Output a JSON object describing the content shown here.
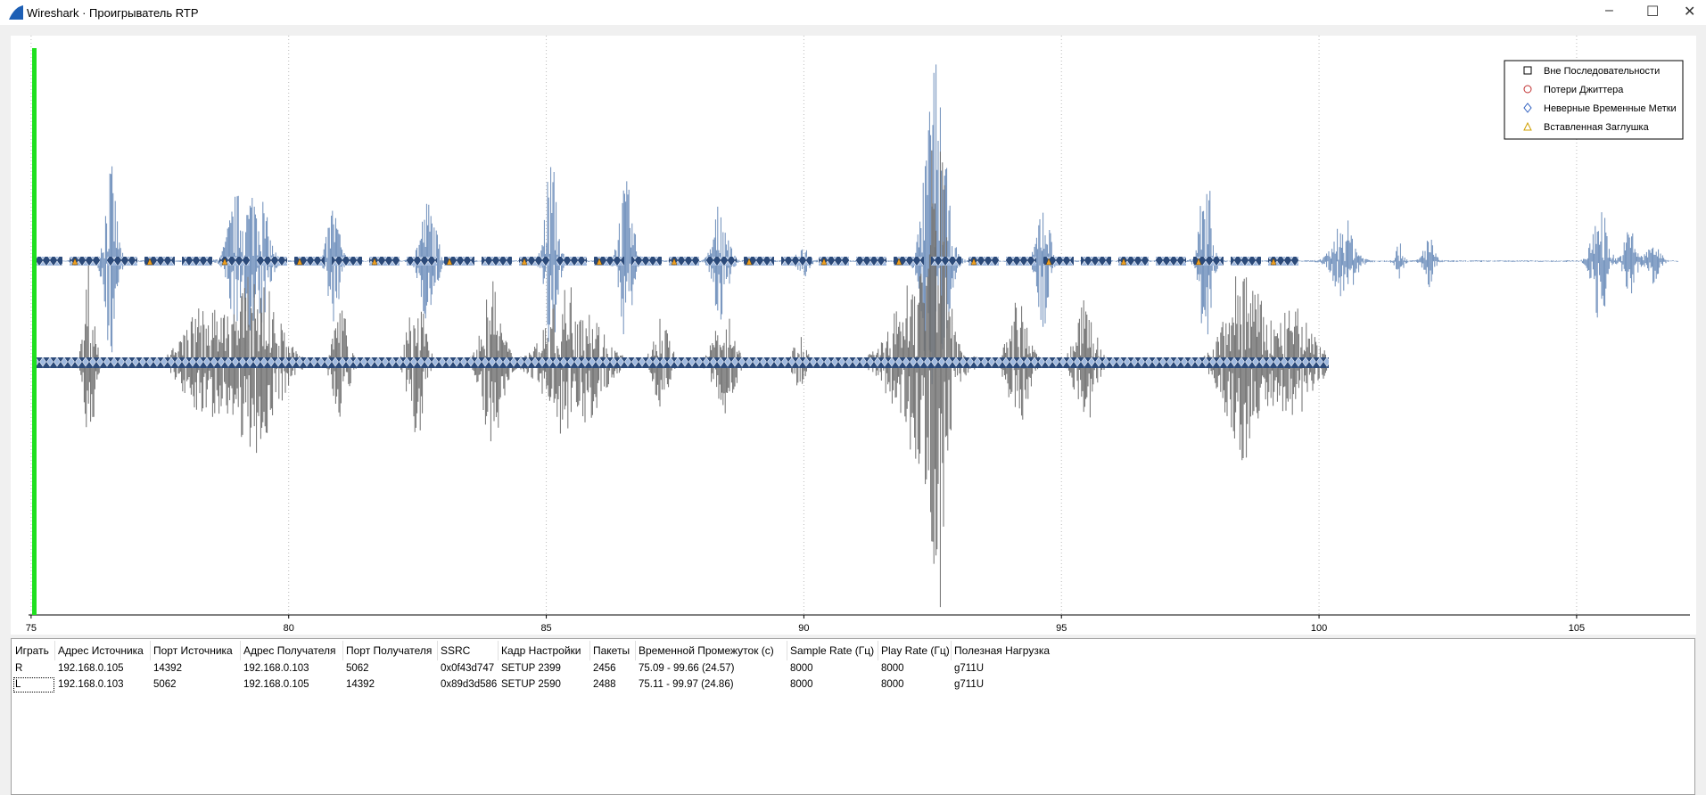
{
  "window": {
    "title": "Wireshark · Проигрыватель RTP"
  },
  "plot": {
    "xlim": [
      74.95,
      107.2
    ],
    "xticks": [
      75,
      80,
      85,
      90,
      95,
      100,
      105
    ],
    "legend": [
      "Вне Последовательности",
      "Потери Джиттера",
      "Неверные Временные Метки",
      "Вставленная Заглушка"
    ]
  },
  "table": {
    "headers": [
      "Играть",
      "Адрес Источника",
      "Порт Источника",
      "Адрес Получателя",
      "Порт Получателя",
      "SSRC",
      "Кадр Настройки",
      "Пакеты",
      "Временной Промежуток (с)",
      "Sample Rate (Гц)",
      "Play Rate (Гц)",
      "Полезная Нагрузка"
    ],
    "rows": [
      [
        "R",
        "192.168.0.105",
        "14392",
        "192.168.0.103",
        "5062",
        "0x0f43d747",
        "SETUP 2399",
        "2456",
        "75.09 - 99.66 (24.57)",
        "8000",
        "8000",
        "g711U"
      ],
      [
        "L",
        "192.168.0.103",
        "5062",
        "192.168.0.105",
        "14392",
        "0x89d3d586",
        "SETUP 2590",
        "2488",
        "75.11 - 99.97 (24.86)",
        "8000",
        "8000",
        "g711U"
      ]
    ]
  }
}
